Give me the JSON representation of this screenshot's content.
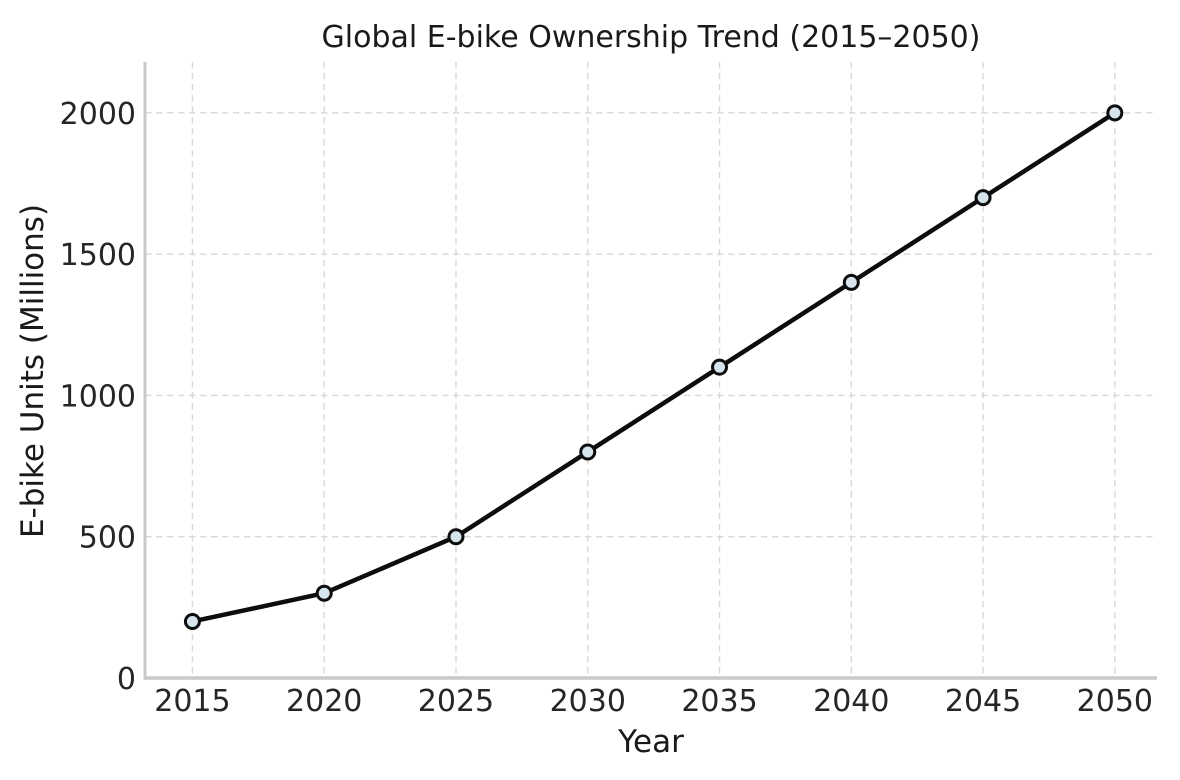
{
  "chart_data": {
    "type": "line",
    "title": "Global E-bike Ownership Trend (2015–2050)",
    "xlabel": "Year",
    "ylabel": "E-bike Units (Millions)",
    "x": [
      2015,
      2020,
      2025,
      2030,
      2035,
      2040,
      2045,
      2050
    ],
    "values": [
      200,
      300,
      500,
      800,
      1100,
      1400,
      1700,
      2000
    ],
    "xticks": [
      2015,
      2020,
      2025,
      2030,
      2035,
      2040,
      2045,
      2050
    ],
    "yticks": [
      0,
      500,
      1000,
      1500,
      2000
    ],
    "xlim": [
      2013.2,
      2051.6
    ],
    "ylim": [
      0,
      2180
    ],
    "grid": "dashed-both-axes",
    "legend": "none",
    "marker_shape": "circle",
    "colors": {
      "line": "#0d0d0d",
      "marker_fill": "#d6e4ee",
      "marker_edge": "#0d0d0d",
      "grid": "#d8d8d8",
      "spine": "#c9c9c9",
      "text": "#262626"
    }
  }
}
